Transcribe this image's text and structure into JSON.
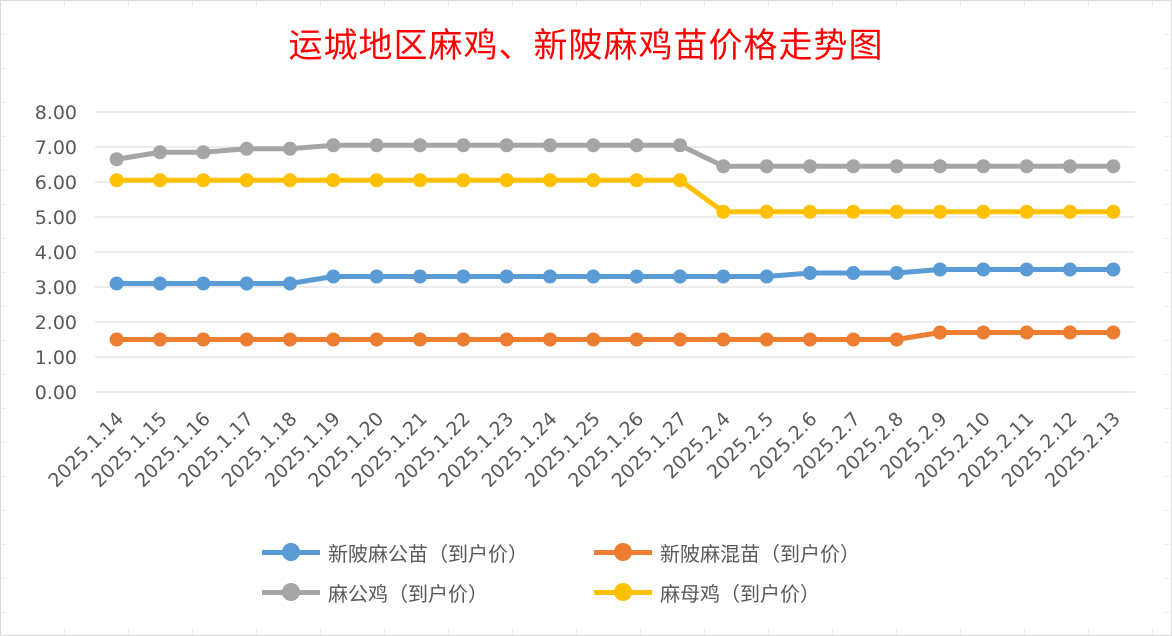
{
  "chart_data": {
    "type": "line",
    "title": "运城地区麻鸡、新陂麻鸡苗价格走势图",
    "categories": [
      "2025.1.14",
      "2025.1.15",
      "2025.1.16",
      "2025.1.17",
      "2025.1.18",
      "2025.1.19",
      "2025.1.20",
      "2025.1.21",
      "2025.1.22",
      "2025.1.23",
      "2025.1.24",
      "2025.1.25",
      "2025.1.26",
      "2025.1.27",
      "2025.2.4",
      "2025.2.5",
      "2025.2.6",
      "2025.2.7",
      "2025.2.8",
      "2025.2.9",
      "2025.2.10",
      "2025.2.11",
      "2025.2.12",
      "2025.2.13"
    ],
    "ylim": [
      0,
      8
    ],
    "yticks": [
      "0.00",
      "1.00",
      "2.00",
      "3.00",
      "4.00",
      "5.00",
      "6.00",
      "7.00",
      "8.00"
    ],
    "grid": true,
    "legend_position": "bottom",
    "series": [
      {
        "name": "新陂麻公苗（到户价）",
        "color": "#5b9bd5",
        "values": [
          3.1,
          3.1,
          3.1,
          3.1,
          3.1,
          3.3,
          3.3,
          3.3,
          3.3,
          3.3,
          3.3,
          3.3,
          3.3,
          3.3,
          3.3,
          3.3,
          3.4,
          3.4,
          3.4,
          3.5,
          3.5,
          3.5,
          3.5,
          3.5
        ]
      },
      {
        "name": "新陂麻混苗（到户价）",
        "color": "#ed7d31",
        "values": [
          1.5,
          1.5,
          1.5,
          1.5,
          1.5,
          1.5,
          1.5,
          1.5,
          1.5,
          1.5,
          1.5,
          1.5,
          1.5,
          1.5,
          1.5,
          1.5,
          1.5,
          1.5,
          1.5,
          1.7,
          1.7,
          1.7,
          1.7,
          1.7
        ]
      },
      {
        "name": "麻公鸡（到户价）",
        "color": "#a5a5a5",
        "values": [
          6.65,
          6.85,
          6.85,
          6.95,
          6.95,
          7.05,
          7.05,
          7.05,
          7.05,
          7.05,
          7.05,
          7.05,
          7.05,
          7.05,
          6.45,
          6.45,
          6.45,
          6.45,
          6.45,
          6.45,
          6.45,
          6.45,
          6.45,
          6.45
        ]
      },
      {
        "name": "麻母鸡（到户价）",
        "color": "#ffc000",
        "values": [
          6.05,
          6.05,
          6.05,
          6.05,
          6.05,
          6.05,
          6.05,
          6.05,
          6.05,
          6.05,
          6.05,
          6.05,
          6.05,
          6.05,
          5.15,
          5.15,
          5.15,
          5.15,
          5.15,
          5.15,
          5.15,
          5.15,
          5.15,
          5.15
        ]
      }
    ]
  }
}
